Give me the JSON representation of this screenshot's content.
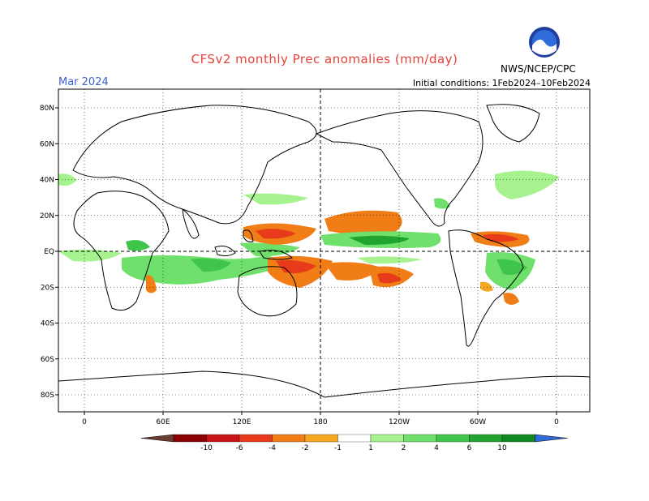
{
  "title": "CFSv2 monthly Prec anomalies (mm/day)",
  "month": "Mar 2024",
  "initial_conditions": "Initial conditions: 1Feb2024–10Feb2024",
  "agency": "NWS/NCEP/CPC",
  "logo_text": "NOAA",
  "lat_ticks": [
    {
      "lat": 80,
      "label": "80N"
    },
    {
      "lat": 60,
      "label": "60N"
    },
    {
      "lat": 40,
      "label": "40N"
    },
    {
      "lat": 20,
      "label": "20N"
    },
    {
      "lat": 0,
      "label": "EQ"
    },
    {
      "lat": -20,
      "label": "20S"
    },
    {
      "lat": -40,
      "label": "40S"
    },
    {
      "lat": -60,
      "label": "60S"
    },
    {
      "lat": -80,
      "label": "80S"
    }
  ],
  "lon_ticks": [
    {
      "lon": 0,
      "label": "0"
    },
    {
      "lon": 60,
      "label": "60E"
    },
    {
      "lon": 120,
      "label": "120E"
    },
    {
      "lon": 180,
      "label": "180"
    },
    {
      "lon": 240,
      "label": "120W"
    },
    {
      "lon": 300,
      "label": "60W"
    },
    {
      "lon": 360,
      "label": "0"
    }
  ],
  "colorbar": {
    "labels": [
      "-10",
      "-6",
      "-4",
      "-2",
      "-1",
      "1",
      "2",
      "4",
      "6",
      "10"
    ],
    "colors": [
      "#6b3d2e",
      "#8b0000",
      "#c81414",
      "#e83b1c",
      "#f07d16",
      "#f5a623",
      "#ffffff",
      "#a6f28f",
      "#6ee06b",
      "#3fc54a",
      "#21a32f",
      "#0f8a1f",
      "#2f6bd9"
    ]
  },
  "legend_colors": {
    "dry_strong": "#e83b1c",
    "dry_medium": "#f07d16",
    "dry_light": "#f5a623",
    "wet_light": "#a6f28f",
    "wet_medium": "#6ee06b",
    "wet_strong": "#3fc54a",
    "wet_vstrong": "#21a32f"
  }
}
